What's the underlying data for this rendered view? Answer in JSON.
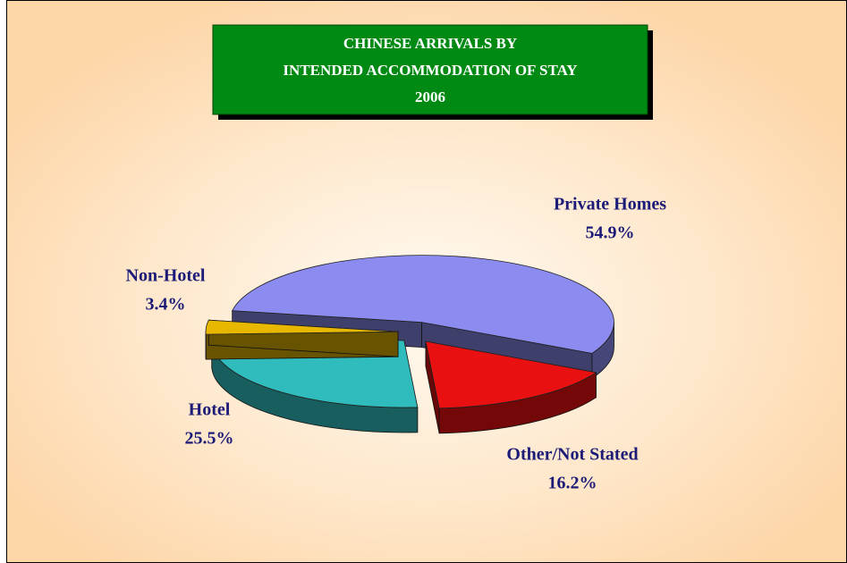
{
  "chart_data": {
    "type": "pie3d",
    "title": [
      "CHINESE ARRIVALS BY",
      "INTENDED ACCOMMODATION OF STAY",
      "2006"
    ],
    "categories": [
      "Private Homes",
      "Other/Not Stated",
      "Hotel",
      "Non-Hotel"
    ],
    "values": [
      54.9,
      16.2,
      25.5,
      3.4
    ],
    "value_labels": [
      "54.9%",
      "16.2%",
      "25.5%",
      "3.4%"
    ],
    "colors": [
      "#8c8cf0",
      "#e81010",
      "#30bcbc",
      "#e8b800"
    ]
  }
}
